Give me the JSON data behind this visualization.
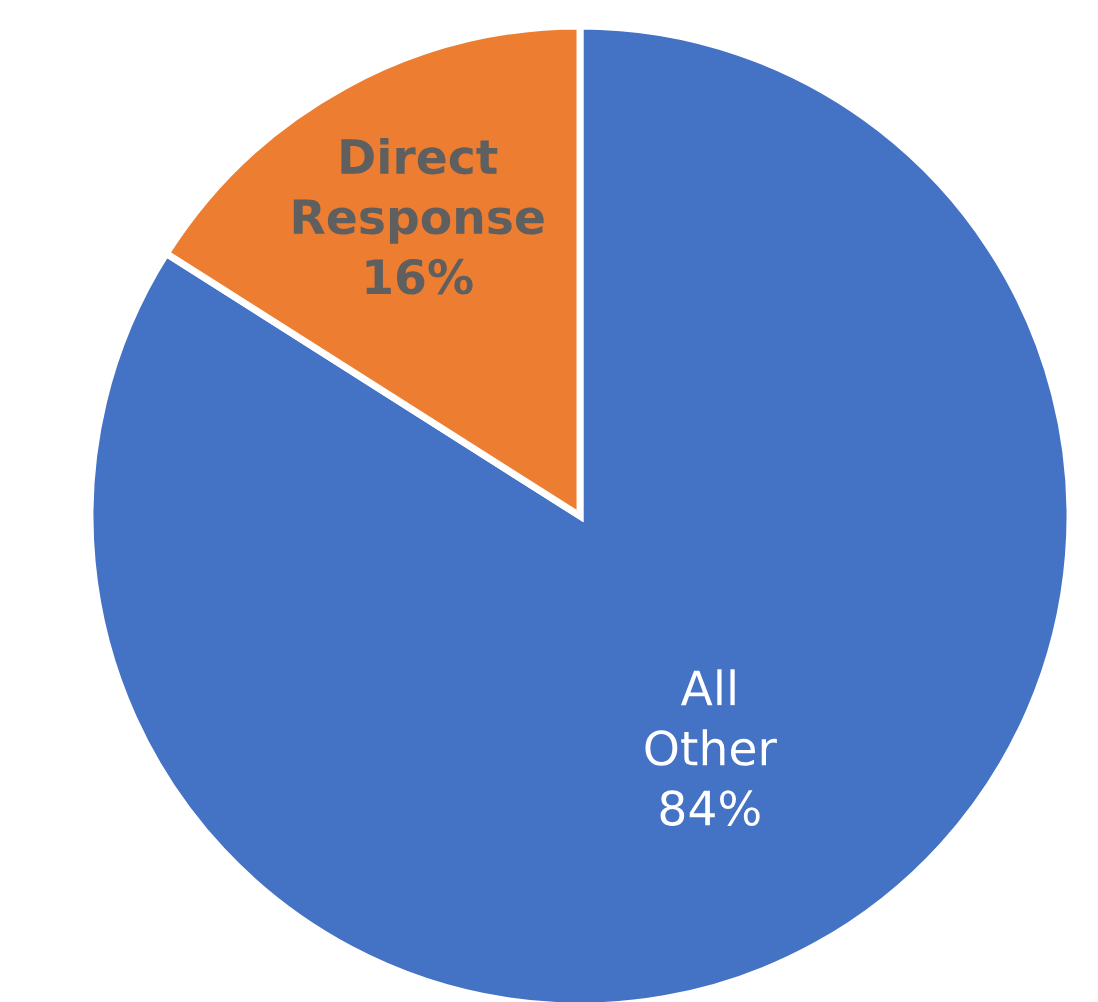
{
  "chart_data": {
    "type": "pie",
    "categories": [
      "All Other",
      "Direct Response"
    ],
    "values": [
      84,
      16
    ],
    "colors": [
      "#4472c4",
      "#ed7d31"
    ],
    "value_labels": [
      "84%",
      "16%"
    ]
  }
}
